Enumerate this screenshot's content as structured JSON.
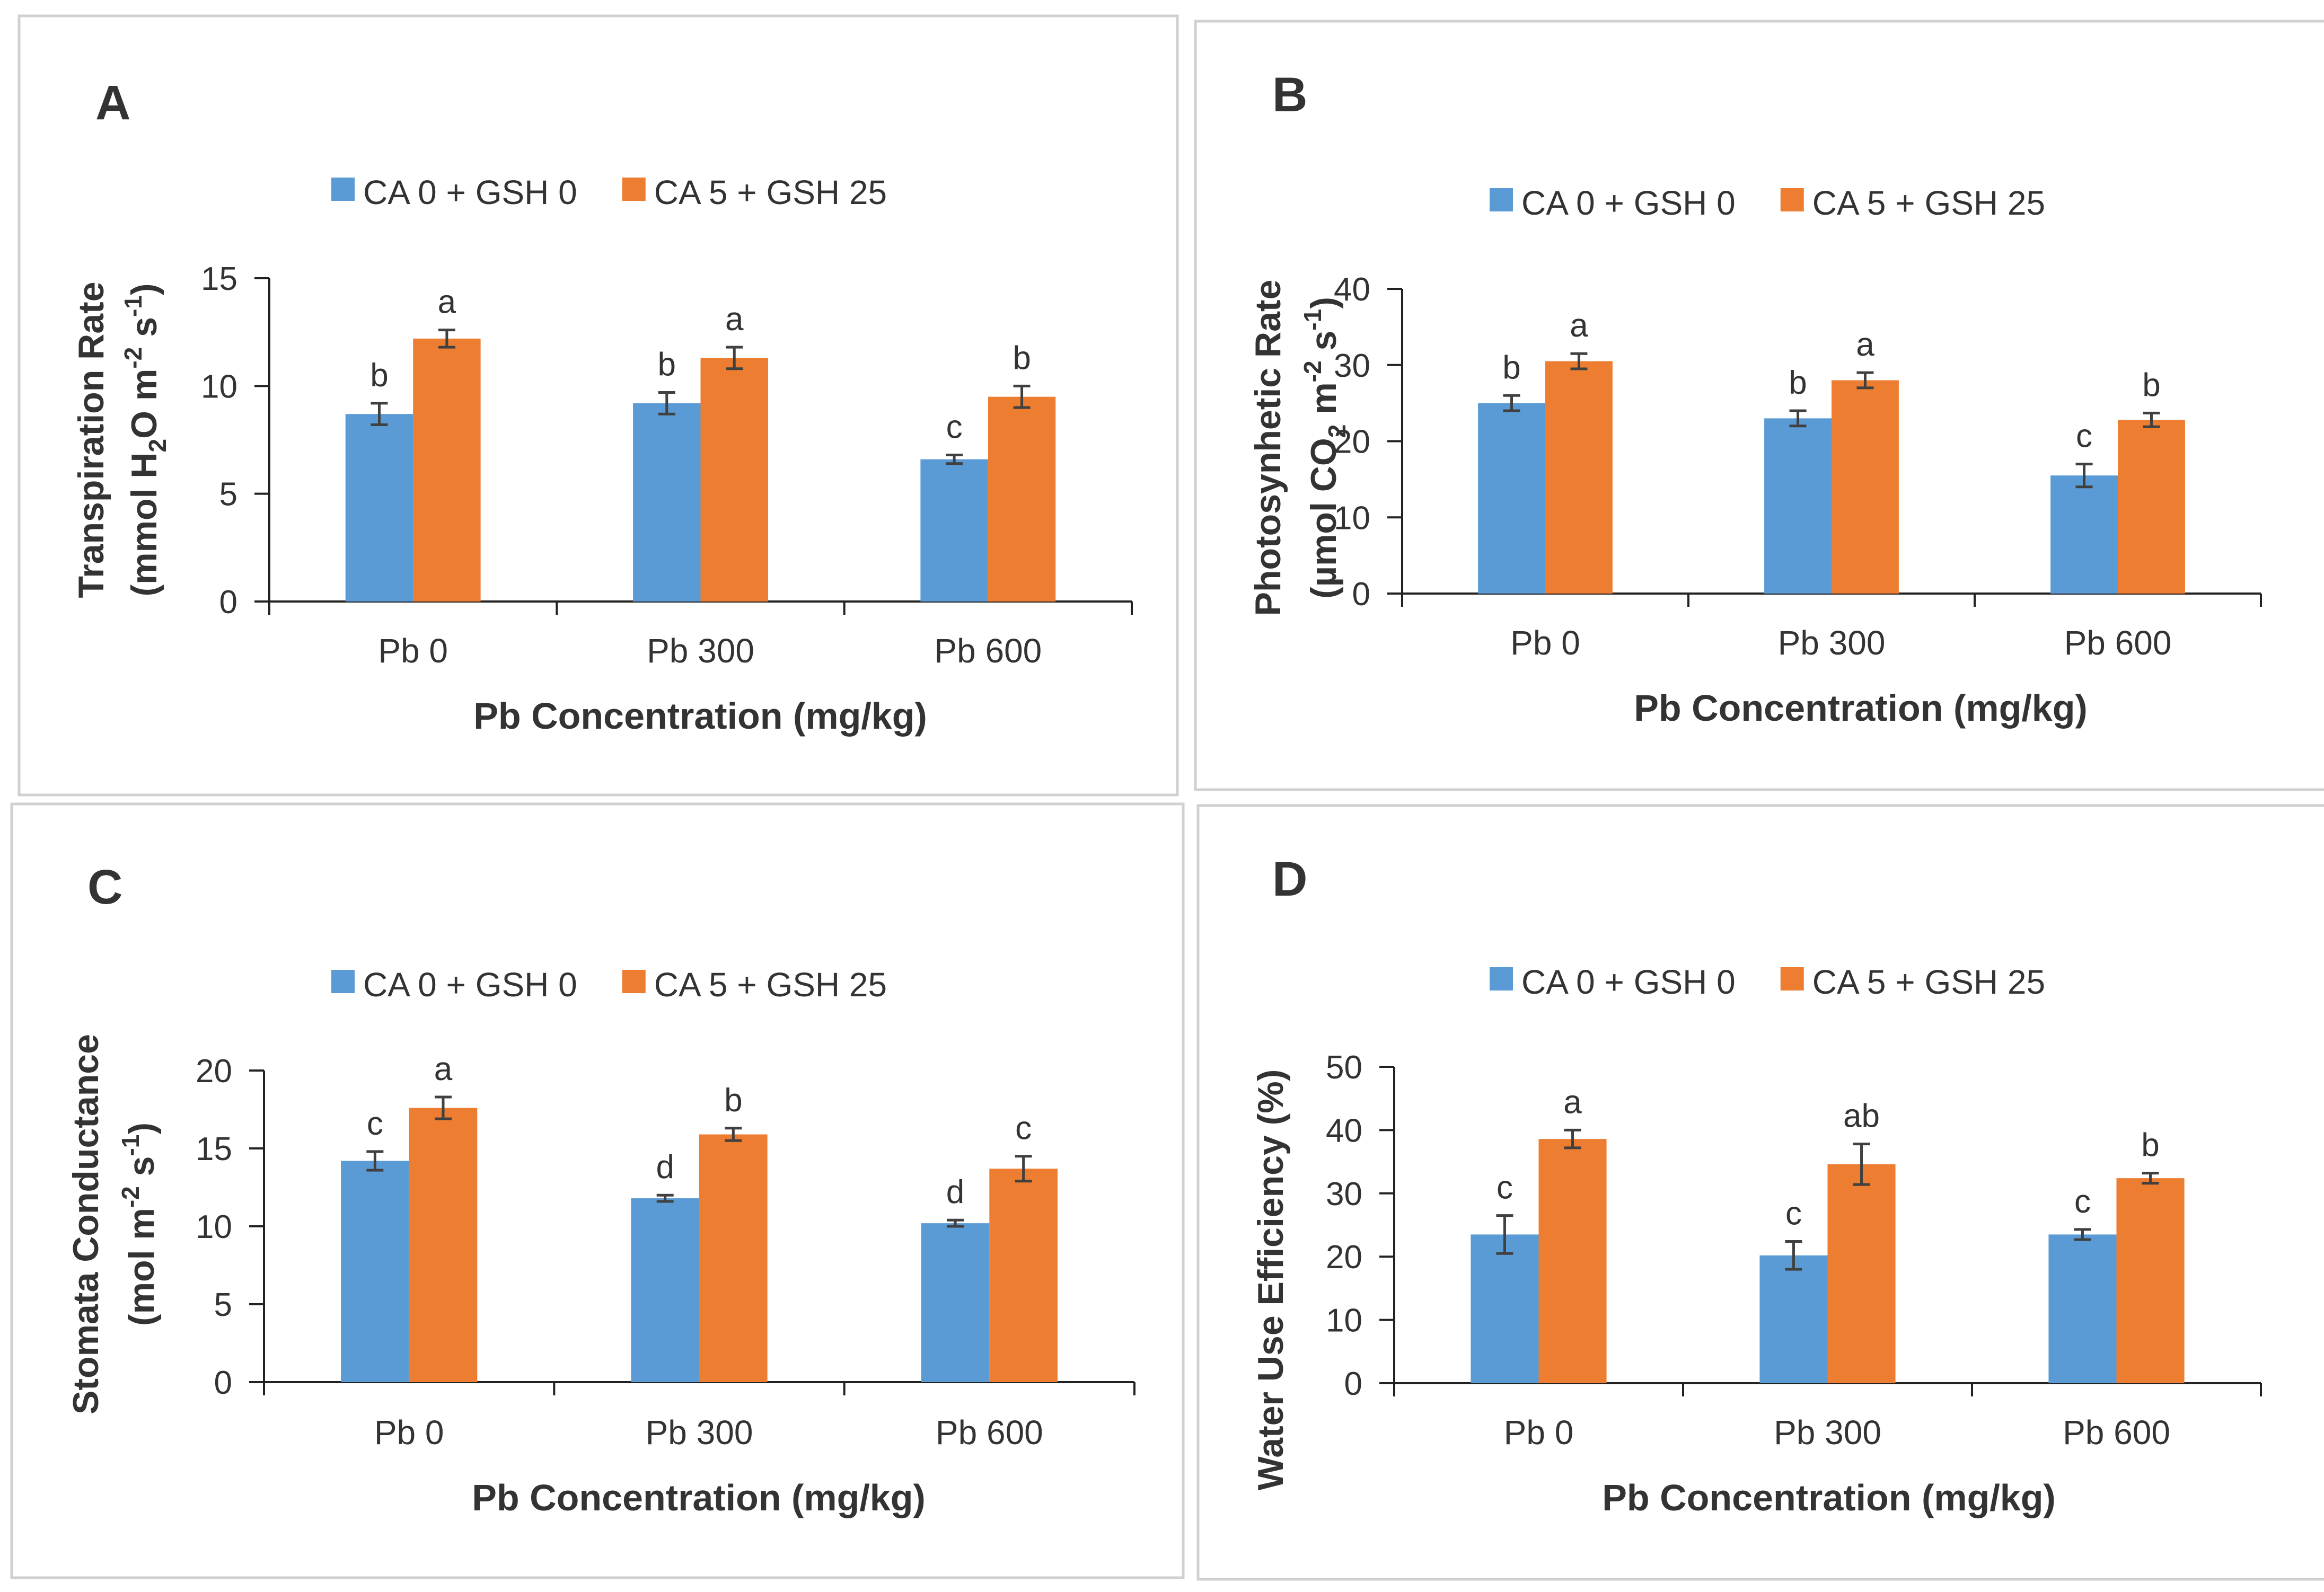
{
  "colors": {
    "series1": "#5b9bd5",
    "series2": "#ed7d31"
  },
  "chart_data": [
    {
      "panel": "A",
      "type": "bar",
      "categories": [
        "Pb 0",
        "Pb 300",
        "Pb 600"
      ],
      "series": [
        {
          "name": "CA 0 + GSH 0",
          "values": [
            8.7,
            9.2,
            6.6
          ],
          "errors": [
            0.5,
            0.5,
            0.2
          ],
          "letters": [
            "b",
            "b",
            "c"
          ]
        },
        {
          "name": "CA 5 + GSH 25",
          "values": [
            12.2,
            11.3,
            9.5
          ],
          "errors": [
            0.4,
            0.5,
            0.5
          ],
          "letters": [
            "a",
            "a",
            "b"
          ]
        }
      ],
      "xlabel": "Pb Concentration (mg/kg)",
      "ylabel_line1": "Transpiration Rate",
      "ylabel_line2": {
        "pre": "(mmol H",
        "sub1": "2",
        "mid": "O m",
        "sup1": "-2",
        "mid2": " s",
        "sup2": "-1",
        "post": ")"
      },
      "ylim": [
        0,
        15
      ],
      "yticks": [
        "0",
        "5",
        "10",
        "15"
      ]
    },
    {
      "panel": "B",
      "type": "bar",
      "categories": [
        "Pb 0",
        "Pb 300",
        "Pb 600"
      ],
      "series": [
        {
          "name": "CA 0 + GSH 0",
          "values": [
            25.0,
            23.0,
            15.5
          ],
          "errors": [
            1.0,
            1.0,
            1.5
          ],
          "letters": [
            "b",
            "b",
            "c"
          ]
        },
        {
          "name": "CA 5 + GSH 25",
          "values": [
            30.5,
            28.0,
            22.8
          ],
          "errors": [
            1.0,
            1.0,
            0.9
          ],
          "letters": [
            "a",
            "a",
            "b"
          ]
        }
      ],
      "xlabel": "Pb Concentration (mg/kg)",
      "ylabel_line1": "Photosynhetic Rate",
      "ylabel_line2": {
        "pre": "(µmol CO",
        "sub1": "2",
        "mid": " m",
        "sup1": "-2",
        "mid2": " s",
        "sup2": "-1",
        "post": ")"
      },
      "ylim": [
        0,
        40
      ],
      "yticks": [
        "0",
        "10",
        "20",
        "30",
        "40"
      ]
    },
    {
      "panel": "C",
      "type": "bar",
      "categories": [
        "Pb 0",
        "Pb 300",
        "Pb 600"
      ],
      "series": [
        {
          "name": "CA 0 + GSH 0",
          "values": [
            14.2,
            11.8,
            10.2
          ],
          "errors": [
            0.6,
            0.2,
            0.2
          ],
          "letters": [
            "c",
            "d",
            "d"
          ]
        },
        {
          "name": "CA 5 + GSH 25",
          "values": [
            17.6,
            15.9,
            13.7
          ],
          "errors": [
            0.7,
            0.4,
            0.8
          ],
          "letters": [
            "a",
            "b",
            "c"
          ]
        }
      ],
      "xlabel": "Pb Concentration (mg/kg)",
      "ylabel_line1": "Stomata Conductance",
      "ylabel_line2": {
        "pre": "(mol m",
        "sub1": "",
        "mid": "",
        "sup1": "-2",
        "mid2": " s",
        "sup2": "-1",
        "post": ")"
      },
      "ylim": [
        0,
        20
      ],
      "yticks": [
        "0",
        "5",
        "10",
        "15",
        "20"
      ]
    },
    {
      "panel": "D",
      "type": "bar",
      "categories": [
        "Pb 0",
        "Pb 300",
        "Pb 600"
      ],
      "series": [
        {
          "name": "CA 0 + GSH 0",
          "values": [
            23.5,
            20.2,
            23.5
          ],
          "errors": [
            3.0,
            2.2,
            0.8
          ],
          "letters": [
            "c",
            "c",
            "c"
          ]
        },
        {
          "name": "CA 5 + GSH 25",
          "values": [
            38.6,
            34.6,
            32.4
          ],
          "errors": [
            1.4,
            3.2,
            0.8
          ],
          "letters": [
            "a",
            "ab",
            "b"
          ]
        }
      ],
      "xlabel": "Pb Concentration (mg/kg)",
      "ylabel_line1": "Water Use Efficiency (%)",
      "ylabel_line2": null,
      "ylim": [
        0,
        50
      ],
      "yticks": [
        "0",
        "10",
        "20",
        "30",
        "40",
        "50"
      ]
    }
  ]
}
